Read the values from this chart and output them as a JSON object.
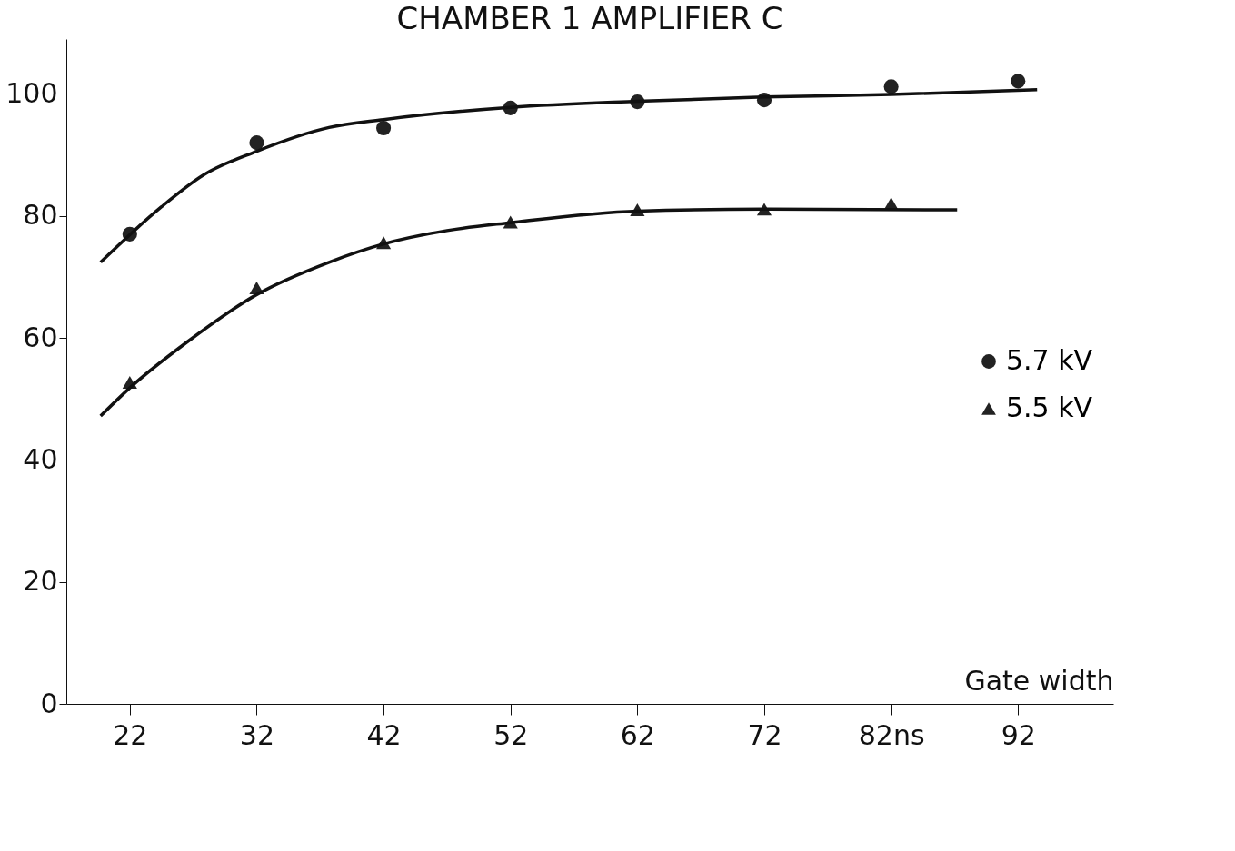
{
  "chart_data": {
    "type": "scatter",
    "title": "CHAMBER 1   AMPLIFIER   C",
    "xlabel": "Gate width",
    "xlim": [
      17,
      99.5
    ],
    "xticks": [
      22,
      32,
      42,
      52,
      62,
      72,
      {
        "value": 82,
        "label": "82ns"
      },
      92
    ],
    "ylim": [
      0,
      109
    ],
    "yticks": [
      0,
      20,
      40,
      60,
      80,
      100
    ],
    "grid": false,
    "legend": "right",
    "series": [
      {
        "name": "5.7 kV",
        "marker": "circle",
        "color": "#222222",
        "x": [
          22,
          32,
          42,
          52,
          62,
          72,
          82,
          92
        ],
        "values": [
          77,
          92,
          94.4,
          97.7,
          98.7,
          99,
          101.2,
          102.1
        ]
      },
      {
        "name": "5.5 kV",
        "marker": "triangle",
        "color": "#222222",
        "x": [
          22,
          32,
          42,
          52,
          62,
          72,
          82
        ],
        "values": [
          52.7,
          68.2,
          75.6,
          79,
          81,
          81.1,
          82
        ]
      },
      {
        "type": "line",
        "line_style": "solid",
        "color": "#111111",
        "x": [
          19.7,
          24.5,
          27.8,
          32,
          37.7,
          42,
          52,
          62,
          72,
          82,
          93.5
        ],
        "values": [
          72.4,
          81.5,
          86.7,
          90.6,
          94.5,
          95.8,
          97.8,
          98.8,
          99.5,
          99.9,
          100.7
        ]
      },
      {
        "type": "line",
        "line_style": "solid",
        "color": "#111111",
        "x": [
          19.7,
          22,
          26.5,
          32,
          37.7,
          42,
          47,
          52,
          62,
          72,
          87.2
        ],
        "values": [
          47.2,
          51.8,
          59.3,
          67.1,
          72.4,
          75.4,
          77.6,
          78.9,
          80.8,
          81.1,
          81
        ]
      }
    ]
  }
}
